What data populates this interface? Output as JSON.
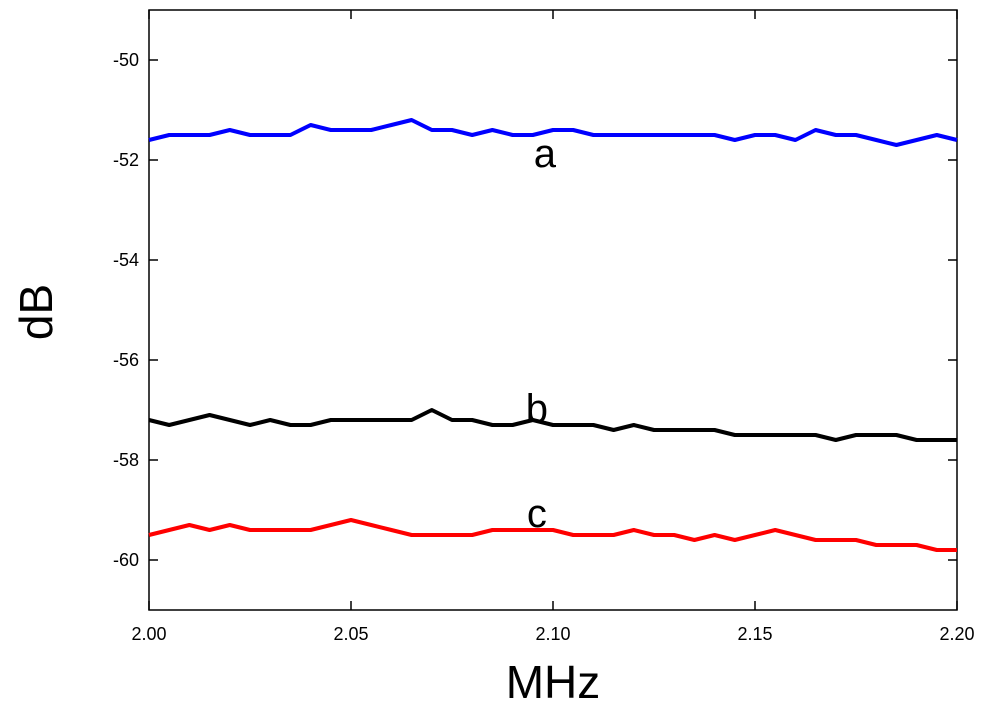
{
  "chart_data": {
    "type": "line",
    "xlabel": "MHz",
    "ylabel": "dB",
    "xlim": [
      2.0,
      2.2
    ],
    "ylim": [
      -61,
      -49
    ],
    "x_ticks": [
      2.0,
      2.05,
      2.1,
      2.15,
      2.2
    ],
    "x_tick_labels": [
      "2.00",
      "2.05",
      "2.10",
      "2.15",
      "2.20"
    ],
    "y_ticks": [
      -50,
      -52,
      -54,
      -56,
      -58,
      -60
    ],
    "y_tick_labels": [
      "-50",
      "-52",
      "-54",
      "-56",
      "-58",
      "-60"
    ],
    "grid": false,
    "series": [
      {
        "name": "a",
        "color": "#0000ff",
        "label_at": [
          2.098,
          -51.9
        ],
        "points": [
          [
            2.0,
            -51.6
          ],
          [
            2.005,
            -51.5
          ],
          [
            2.01,
            -51.5
          ],
          [
            2.015,
            -51.5
          ],
          [
            2.02,
            -51.4
          ],
          [
            2.025,
            -51.5
          ],
          [
            2.03,
            -51.5
          ],
          [
            2.035,
            -51.5
          ],
          [
            2.04,
            -51.3
          ],
          [
            2.045,
            -51.4
          ],
          [
            2.05,
            -51.4
          ],
          [
            2.055,
            -51.4
          ],
          [
            2.06,
            -51.3
          ],
          [
            2.065,
            -51.2
          ],
          [
            2.07,
            -51.4
          ],
          [
            2.075,
            -51.4
          ],
          [
            2.08,
            -51.5
          ],
          [
            2.085,
            -51.4
          ],
          [
            2.09,
            -51.5
          ],
          [
            2.095,
            -51.5
          ],
          [
            2.1,
            -51.4
          ],
          [
            2.105,
            -51.4
          ],
          [
            2.11,
            -51.5
          ],
          [
            2.115,
            -51.5
          ],
          [
            2.12,
            -51.5
          ],
          [
            2.125,
            -51.5
          ],
          [
            2.13,
            -51.5
          ],
          [
            2.135,
            -51.5
          ],
          [
            2.14,
            -51.5
          ],
          [
            2.145,
            -51.6
          ],
          [
            2.15,
            -51.5
          ],
          [
            2.155,
            -51.5
          ],
          [
            2.16,
            -51.6
          ],
          [
            2.165,
            -51.4
          ],
          [
            2.17,
            -51.5
          ],
          [
            2.175,
            -51.5
          ],
          [
            2.18,
            -51.6
          ],
          [
            2.185,
            -51.7
          ],
          [
            2.19,
            -51.6
          ],
          [
            2.195,
            -51.5
          ],
          [
            2.2,
            -51.6
          ]
        ]
      },
      {
        "name": "b",
        "color": "#000000",
        "label_at": [
          2.096,
          -57.0
        ],
        "points": [
          [
            2.0,
            -57.2
          ],
          [
            2.005,
            -57.3
          ],
          [
            2.01,
            -57.2
          ],
          [
            2.015,
            -57.1
          ],
          [
            2.02,
            -57.2
          ],
          [
            2.025,
            -57.3
          ],
          [
            2.03,
            -57.2
          ],
          [
            2.035,
            -57.3
          ],
          [
            2.04,
            -57.3
          ],
          [
            2.045,
            -57.2
          ],
          [
            2.05,
            -57.2
          ],
          [
            2.055,
            -57.2
          ],
          [
            2.06,
            -57.2
          ],
          [
            2.065,
            -57.2
          ],
          [
            2.07,
            -57.0
          ],
          [
            2.075,
            -57.2
          ],
          [
            2.08,
            -57.2
          ],
          [
            2.085,
            -57.3
          ],
          [
            2.09,
            -57.3
          ],
          [
            2.095,
            -57.2
          ],
          [
            2.1,
            -57.3
          ],
          [
            2.105,
            -57.3
          ],
          [
            2.11,
            -57.3
          ],
          [
            2.115,
            -57.4
          ],
          [
            2.12,
            -57.3
          ],
          [
            2.125,
            -57.4
          ],
          [
            2.13,
            -57.4
          ],
          [
            2.135,
            -57.4
          ],
          [
            2.14,
            -57.4
          ],
          [
            2.145,
            -57.5
          ],
          [
            2.15,
            -57.5
          ],
          [
            2.155,
            -57.5
          ],
          [
            2.16,
            -57.5
          ],
          [
            2.165,
            -57.5
          ],
          [
            2.17,
            -57.6
          ],
          [
            2.175,
            -57.5
          ],
          [
            2.18,
            -57.5
          ],
          [
            2.185,
            -57.5
          ],
          [
            2.19,
            -57.6
          ],
          [
            2.195,
            -57.6
          ],
          [
            2.2,
            -57.6
          ]
        ]
      },
      {
        "name": "c",
        "color": "#ff0000",
        "label_at": [
          2.096,
          -59.1
        ],
        "points": [
          [
            2.0,
            -59.5
          ],
          [
            2.005,
            -59.4
          ],
          [
            2.01,
            -59.3
          ],
          [
            2.015,
            -59.4
          ],
          [
            2.02,
            -59.3
          ],
          [
            2.025,
            -59.4
          ],
          [
            2.03,
            -59.4
          ],
          [
            2.035,
            -59.4
          ],
          [
            2.04,
            -59.4
          ],
          [
            2.045,
            -59.3
          ],
          [
            2.05,
            -59.2
          ],
          [
            2.055,
            -59.3
          ],
          [
            2.06,
            -59.4
          ],
          [
            2.065,
            -59.5
          ],
          [
            2.07,
            -59.5
          ],
          [
            2.075,
            -59.5
          ],
          [
            2.08,
            -59.5
          ],
          [
            2.085,
            -59.4
          ],
          [
            2.09,
            -59.4
          ],
          [
            2.095,
            -59.4
          ],
          [
            2.1,
            -59.4
          ],
          [
            2.105,
            -59.5
          ],
          [
            2.11,
            -59.5
          ],
          [
            2.115,
            -59.5
          ],
          [
            2.12,
            -59.4
          ],
          [
            2.125,
            -59.5
          ],
          [
            2.13,
            -59.5
          ],
          [
            2.135,
            -59.6
          ],
          [
            2.14,
            -59.5
          ],
          [
            2.145,
            -59.6
          ],
          [
            2.15,
            -59.5
          ],
          [
            2.155,
            -59.4
          ],
          [
            2.16,
            -59.5
          ],
          [
            2.165,
            -59.6
          ],
          [
            2.17,
            -59.6
          ],
          [
            2.175,
            -59.6
          ],
          [
            2.18,
            -59.7
          ],
          [
            2.185,
            -59.7
          ],
          [
            2.19,
            -59.7
          ],
          [
            2.195,
            -59.8
          ],
          [
            2.2,
            -59.8
          ]
        ]
      }
    ]
  }
}
